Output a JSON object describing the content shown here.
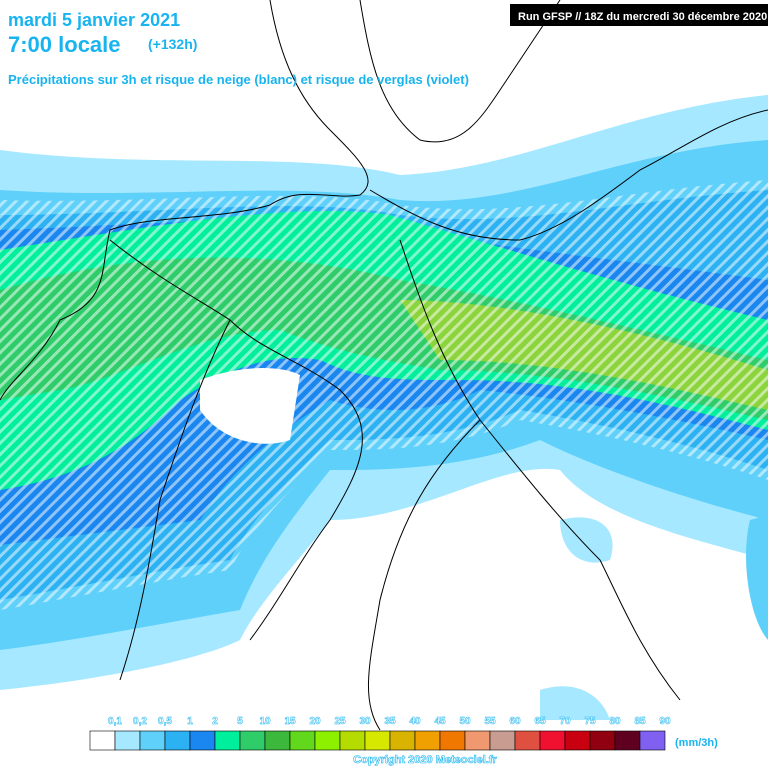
{
  "header": {
    "date": "mardi 5 janvier 2021",
    "time": "7:00 locale",
    "lead": "(+132h)",
    "subtitle": "Précipitations sur 3h et risque de neige (blanc) et risque de verglas (violet)",
    "run": "Run GFSP // 18Z du mercredi 30 décembre 2020"
  },
  "legend": {
    "items": [
      {
        "label": "0,1",
        "color": "#ffffff"
      },
      {
        "label": "0,2",
        "color": "#a6e8ff"
      },
      {
        "label": "0,5",
        "color": "#5fd0fa"
      },
      {
        "label": "1",
        "color": "#2cb2f2"
      },
      {
        "label": "2",
        "color": "#1a86f0"
      },
      {
        "label": "5",
        "color": "#00ef9c"
      },
      {
        "label": "10",
        "color": "#2fcd6a"
      },
      {
        "label": "15",
        "color": "#3cb83c"
      },
      {
        "label": "20",
        "color": "#62d81c"
      },
      {
        "label": "25",
        "color": "#8cf000"
      },
      {
        "label": "30",
        "color": "#b4dc00"
      },
      {
        "label": "35",
        "color": "#d6e800"
      },
      {
        "label": "40",
        "color": "#d8b400"
      },
      {
        "label": "45",
        "color": "#f0a000"
      },
      {
        "label": "50",
        "color": "#f07800"
      },
      {
        "label": "55",
        "color": "#f09870"
      },
      {
        "label": "60",
        "color": "#c89c90"
      },
      {
        "label": "65",
        "color": "#e05040"
      },
      {
        "label": "70",
        "color": "#f01030"
      },
      {
        "label": "75",
        "color": "#c80010"
      },
      {
        "label": "80",
        "color": "#900010"
      },
      {
        "label": "85",
        "color": "#600020"
      },
      {
        "label": "90",
        "color": "#8060f0"
      }
    ],
    "unit": "(mm/3h)"
  },
  "footer": {
    "copyright": "Copyright 2020 Meteociel.fr"
  }
}
